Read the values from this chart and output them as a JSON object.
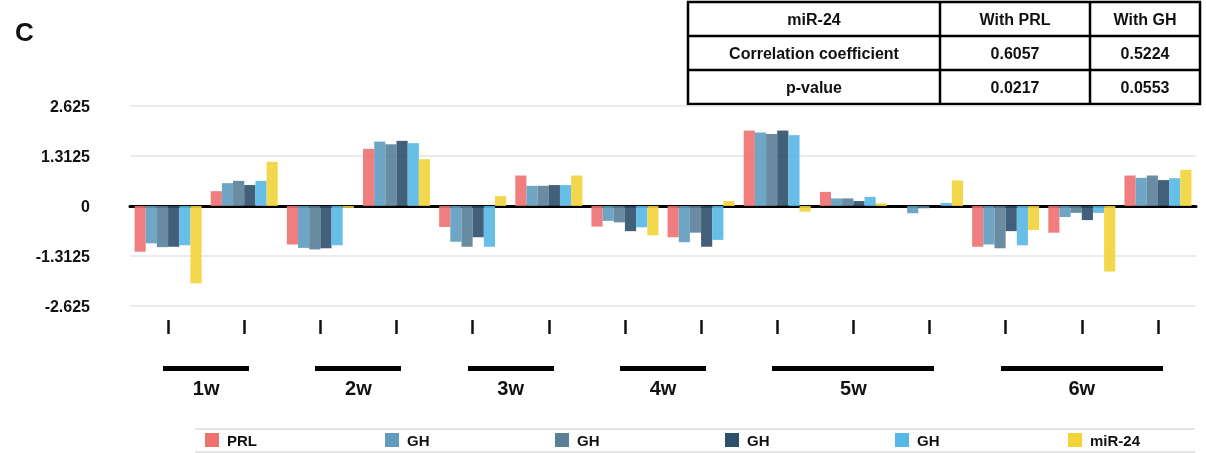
{
  "chart_data": {
    "type": "bar",
    "title": "C",
    "categories": [
      null,
      null,
      null,
      null,
      null,
      null,
      null,
      null,
      null,
      null,
      null,
      null,
      null,
      null
    ],
    "series": [
      {
        "name": "PRL",
        "color": "#f07070",
        "values": [
          -1.2,
          0.39,
          -1.01,
          1.5,
          -0.55,
          0.8,
          -0.54,
          -0.82,
          1.98,
          0.37,
          0,
          -1.07,
          -0.7,
          0.8
        ]
      },
      {
        "name": "GH",
        "color": "#5f9cbf",
        "values": [
          -0.98,
          0.6,
          -1.1,
          1.69,
          -0.94,
          0.53,
          -0.39,
          -0.95,
          1.93,
          0.2,
          -0.19,
          -1.01,
          -0.29,
          0.74
        ]
      },
      {
        "name": "GH",
        "color": "#5a8099",
        "values": [
          -1.08,
          0.66,
          -1.14,
          1.62,
          -1.07,
          0.53,
          -0.43,
          -0.7,
          1.89,
          0.2,
          -0.06,
          -1.11,
          -0.18,
          0.8
        ]
      },
      {
        "name": "GH",
        "color": "#2e4f6a",
        "values": [
          -1.07,
          0.55,
          -1.11,
          1.71,
          -0.82,
          0.55,
          -0.66,
          -1.07,
          1.98,
          0.13,
          0,
          -0.66,
          -0.37,
          0.68
        ]
      },
      {
        "name": "GH",
        "color": "#56b8e6",
        "values": [
          -1.03,
          0.66,
          -1.03,
          1.65,
          -1.07,
          0.55,
          -0.56,
          -0.89,
          1.86,
          0.24,
          0.08,
          -1.03,
          -0.18,
          0.73
        ]
      },
      {
        "name": "miR-24",
        "color": "#f2d43a",
        "values": [
          -2.03,
          1.16,
          -0.05,
          1.23,
          0.26,
          0.8,
          -0.77,
          0.13,
          -0.15,
          0.07,
          0.67,
          -0.63,
          -1.72,
          0.95
        ]
      }
    ],
    "ylim": [
      -2.625,
      2.625
    ],
    "yticks": [
      -2.625,
      -1.3125,
      0,
      1.3125,
      2.625
    ],
    "grid": "y",
    "legend": "bottom",
    "annotations": [
      "1w",
      "2w",
      "3w",
      "4w",
      "5w",
      "6w",
      "miR-24",
      "With PRL",
      "With GH",
      "Correlation coefficient",
      "0.6057",
      "0.5224",
      "p-value",
      "0.0217",
      "0.0553"
    ]
  }
}
